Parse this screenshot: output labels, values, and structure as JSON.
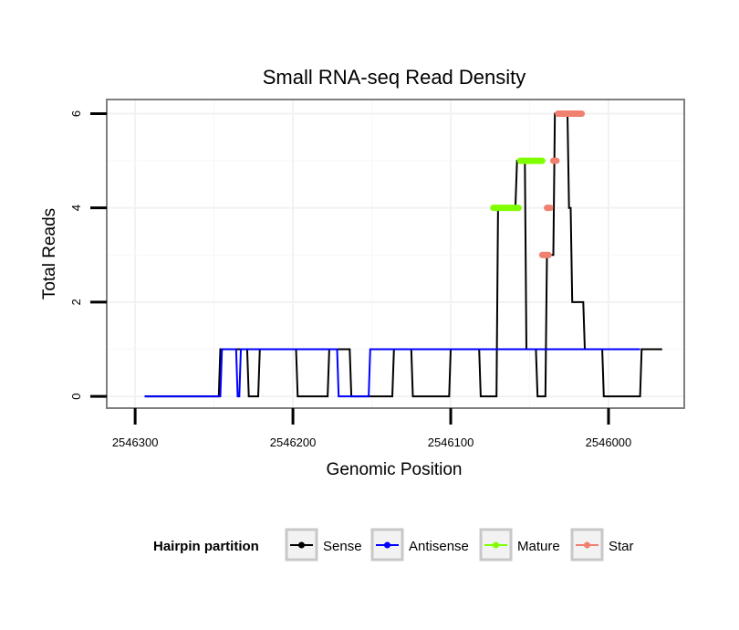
{
  "chart_data": {
    "type": "line",
    "title": "Small RNA-seq Read Density",
    "xlabel": "Genomic Position",
    "ylabel": "Total Reads",
    "xlim": [
      2546318,
      2545952
    ],
    "ylim": [
      -0.25,
      6.3
    ],
    "x_ticks": [
      2546300,
      2546200,
      2546100,
      2546000
    ],
    "x_tick_labels": [
      "2546300",
      "2546200",
      "2546100",
      "2546000"
    ],
    "y_ticks": [
      0,
      2,
      4,
      6
    ],
    "y_tick_labels": [
      "0",
      "2",
      "4",
      "6"
    ],
    "grid": true,
    "legend": {
      "title": "Hairpin partition",
      "position": "bottom",
      "entries": [
        {
          "label": "Sense",
          "color": "#000000"
        },
        {
          "label": "Antisense",
          "color": "#0000ff"
        },
        {
          "label": "Mature",
          "color": "#7fff00"
        },
        {
          "label": "Star",
          "color": "#f08070"
        }
      ]
    },
    "series": [
      {
        "name": "Sense",
        "color": "#000000",
        "style": "line",
        "x": [
          2546294,
          2546247,
          2546246,
          2546229,
          2546228,
          2546222,
          2546221,
          2546198,
          2546197,
          2546178,
          2546177,
          2546164,
          2546163,
          2546137,
          2546136,
          2546125,
          2546124,
          2546101,
          2546100,
          2546082,
          2546081,
          2546071,
          2546070,
          2546059,
          2546058,
          2546057,
          2546056,
          2546053,
          2546052,
          2546046,
          2546045,
          2546040,
          2546039,
          2546035,
          2546034,
          2546026,
          2546025,
          2546024,
          2546023,
          2546016,
          2546015,
          2546004,
          2546003,
          2545980,
          2545979,
          2545966
        ],
        "y": [
          0,
          0,
          1,
          1,
          0,
          0,
          1,
          1,
          0,
          0,
          1,
          1,
          0,
          0,
          1,
          1,
          0,
          0,
          1,
          1,
          0,
          0,
          4,
          4,
          5,
          5,
          5,
          5,
          1,
          1,
          0,
          0,
          3,
          3,
          6,
          6,
          4,
          4,
          2,
          2,
          1,
          1,
          0,
          0,
          1,
          1
        ]
      },
      {
        "name": "Antisense",
        "color": "#0000ff",
        "style": "line",
        "x": [
          2546294,
          2546246,
          2546245,
          2546236,
          2546235,
          2546234,
          2546233,
          2546172,
          2546171,
          2546152,
          2546151,
          2545980
        ],
        "y": [
          0,
          0,
          1,
          1,
          0,
          0,
          1,
          1,
          0,
          0,
          1,
          1
        ]
      },
      {
        "name": "Mature",
        "color": "#7fff00",
        "style": "segments",
        "segments": [
          {
            "x": [
              2546073,
              2546057
            ],
            "y": [
              4,
              4
            ]
          },
          {
            "x": [
              2546056,
              2546042
            ],
            "y": [
              5,
              5
            ]
          }
        ]
      },
      {
        "name": "Star",
        "color": "#f08070",
        "style": "segments",
        "segments": [
          {
            "x": [
              2546042,
              2546038
            ],
            "y": [
              3,
              3
            ]
          },
          {
            "x": [
              2546039,
              2546037
            ],
            "y": [
              4,
              4
            ]
          },
          {
            "x": [
              2546035,
              2546033
            ],
            "y": [
              5,
              5
            ]
          },
          {
            "x": [
              2546032,
              2546017
            ],
            "y": [
              6,
              6
            ]
          }
        ]
      }
    ]
  }
}
